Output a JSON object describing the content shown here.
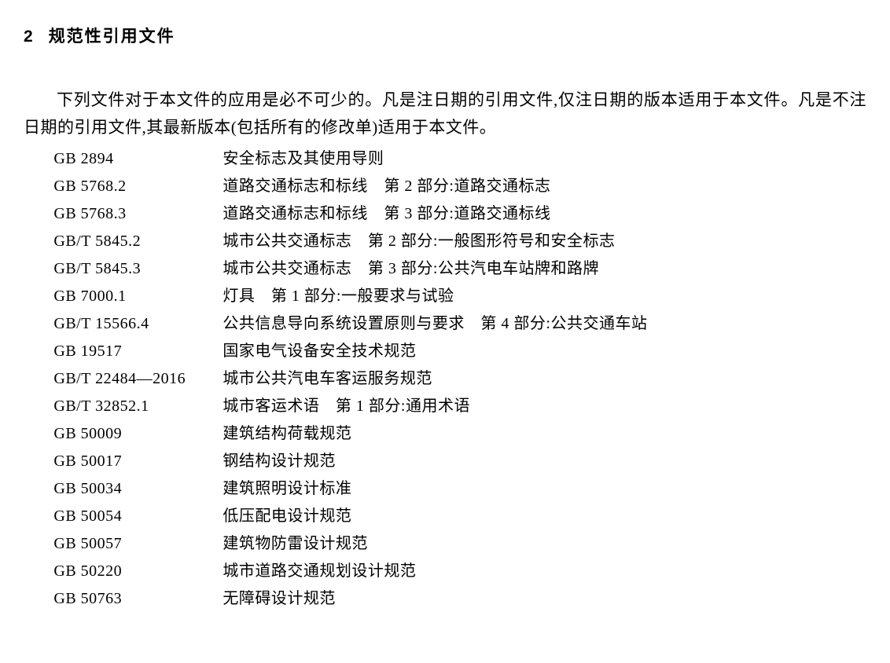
{
  "section": {
    "number": "2",
    "title": "规范性引用文件"
  },
  "intro": {
    "text": "下列文件对于本文件的应用是必不可少的。凡是注日期的引用文件,仅注日期的版本适用于本文件。凡是不注日期的引用文件,其最新版本(包括所有的修改单)适用于本文件。"
  },
  "references": [
    {
      "code": "GB 2894",
      "title": "安全标志及其使用导则"
    },
    {
      "code": "GB 5768.2",
      "title": "道路交通标志和标线　第 2 部分:道路交通标志"
    },
    {
      "code": "GB 5768.3",
      "title": "道路交通标志和标线　第 3 部分:道路交通标线"
    },
    {
      "code": "GB/T 5845.2",
      "title": "城市公共交通标志　第 2 部分:一般图形符号和安全标志"
    },
    {
      "code": "GB/T 5845.3",
      "title": "城市公共交通标志　第 3 部分:公共汽电车站牌和路牌"
    },
    {
      "code": "GB 7000.1",
      "title": "灯具　第 1 部分:一般要求与试验"
    },
    {
      "code": "GB/T 15566.4",
      "title": "公共信息导向系统设置原则与要求　第 4 部分:公共交通车站"
    },
    {
      "code": "GB 19517",
      "title": "国家电气设备安全技术规范"
    },
    {
      "code": "GB/T 22484—2016",
      "title": "城市公共汽电车客运服务规范"
    },
    {
      "code": "GB/T 32852.1",
      "title": "城市客运术语　第 1 部分:通用术语"
    },
    {
      "code": "GB 50009",
      "title": "建筑结构荷载规范"
    },
    {
      "code": "GB 50017",
      "title": "钢结构设计规范"
    },
    {
      "code": "GB 50034",
      "title": "建筑照明设计标准"
    },
    {
      "code": "GB 50054",
      "title": "低压配电设计规范"
    },
    {
      "code": "GB 50057",
      "title": "建筑物防雷设计规范"
    },
    {
      "code": "GB 50220",
      "title": "城市道路交通规划设计规范"
    },
    {
      "code": "GB 50763",
      "title": "无障碍设计规范"
    }
  ]
}
